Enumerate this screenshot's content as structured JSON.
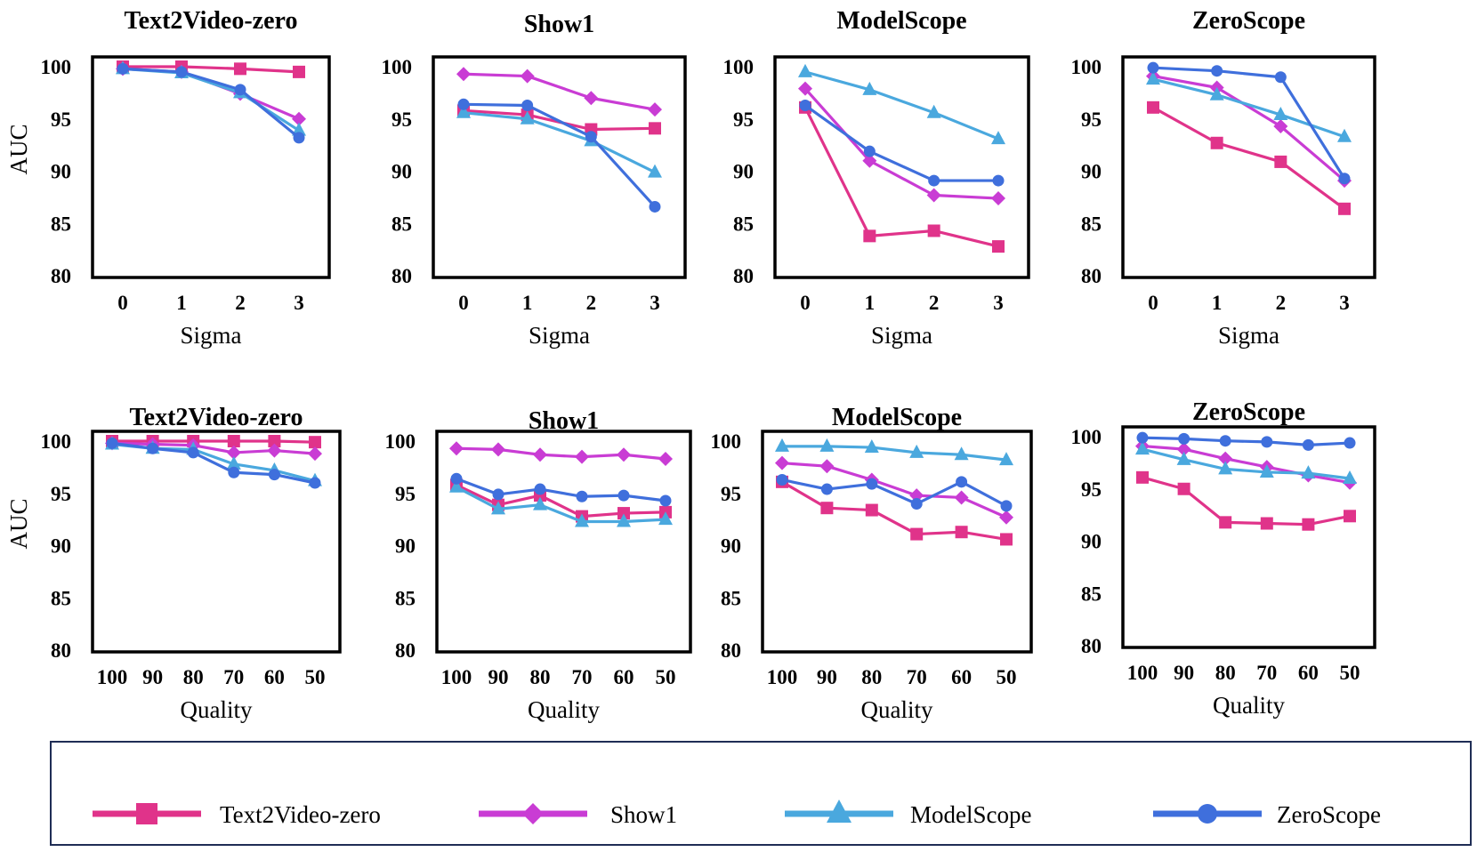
{
  "series_styles": [
    {
      "name": "Text2Video-zero",
      "color": "#e0338a",
      "marker": "square"
    },
    {
      "name": "Show1",
      "color": "#c93cd4",
      "marker": "diamond"
    },
    {
      "name": "ModelScope",
      "color": "#4aa8de",
      "marker": "triangle"
    },
    {
      "name": "ZeroScope",
      "color": "#3f6fdc",
      "marker": "circle"
    }
  ],
  "chart_data": [
    {
      "type": "line",
      "title": "Text2Video-zero",
      "xlabel": "Sigma",
      "ylabel": "AUC",
      "categories": [
        "0",
        "1",
        "2",
        "3"
      ],
      "ylim": [
        80,
        100
      ],
      "yticks": [
        "80",
        "85",
        "90",
        "95",
        "100"
      ],
      "series": [
        {
          "name": "Text2Video-zero",
          "values": [
            100,
            100,
            99.8,
            99.5
          ]
        },
        {
          "name": "Show1",
          "values": [
            99.8,
            99.5,
            97.4,
            95.0
          ]
        },
        {
          "name": "ModelScope",
          "values": [
            99.8,
            99.4,
            97.5,
            93.9
          ]
        },
        {
          "name": "ZeroScope",
          "values": [
            99.8,
            99.5,
            97.8,
            93.2
          ]
        }
      ]
    },
    {
      "type": "line",
      "title": "Show1",
      "xlabel": "Sigma",
      "ylabel": "",
      "categories": [
        "0",
        "1",
        "2",
        "3"
      ],
      "ylim": [
        80,
        100
      ],
      "yticks": [
        "80",
        "85",
        "90",
        "95",
        "100"
      ],
      "series": [
        {
          "name": "Text2Video-zero",
          "values": [
            95.8,
            95.4,
            94.0,
            94.1
          ]
        },
        {
          "name": "Show1",
          "values": [
            99.3,
            99.1,
            97.0,
            95.9
          ]
        },
        {
          "name": "ModelScope",
          "values": [
            95.6,
            95.0,
            92.9,
            89.9
          ]
        },
        {
          "name": "ZeroScope",
          "values": [
            96.4,
            96.3,
            93.3,
            86.6
          ]
        }
      ]
    },
    {
      "type": "line",
      "title": "ModelScope",
      "xlabel": "Sigma",
      "ylabel": "",
      "categories": [
        "0",
        "1",
        "2",
        "3"
      ],
      "ylim": [
        80,
        100
      ],
      "yticks": [
        "80",
        "85",
        "90",
        "95",
        "100"
      ],
      "series": [
        {
          "name": "Text2Video-zero",
          "values": [
            96.1,
            83.8,
            84.3,
            82.8
          ]
        },
        {
          "name": "Show1",
          "values": [
            97.9,
            91.0,
            87.7,
            87.4
          ]
        },
        {
          "name": "ModelScope",
          "values": [
            99.5,
            97.8,
            95.6,
            93.1
          ]
        },
        {
          "name": "ZeroScope",
          "values": [
            96.3,
            91.9,
            89.1,
            89.1
          ]
        }
      ]
    },
    {
      "type": "line",
      "title": "ZeroScope",
      "xlabel": "Sigma",
      "ylabel": "",
      "categories": [
        "0",
        "1",
        "2",
        "3"
      ],
      "ylim": [
        80,
        100
      ],
      "yticks": [
        "80",
        "85",
        "90",
        "95",
        "100"
      ],
      "series": [
        {
          "name": "Text2Video-zero",
          "values": [
            96.1,
            92.7,
            90.9,
            86.4
          ]
        },
        {
          "name": "Show1",
          "values": [
            99.1,
            98.0,
            94.3,
            89.1
          ]
        },
        {
          "name": "ModelScope",
          "values": [
            98.8,
            97.3,
            95.4,
            93.3
          ]
        },
        {
          "name": "ZeroScope",
          "values": [
            99.9,
            99.6,
            99.0,
            89.3
          ]
        }
      ]
    },
    {
      "type": "line",
      "title": "Text2Video-zero",
      "xlabel": "Quality",
      "ylabel": "AUC",
      "categories": [
        "100",
        "90",
        "80",
        "70",
        "60",
        "50"
      ],
      "ylim": [
        80,
        100
      ],
      "yticks": [
        "80",
        "85",
        "90",
        "95",
        "100"
      ],
      "series": [
        {
          "name": "Text2Video-zero",
          "values": [
            100,
            100,
            100,
            100,
            100,
            99.9
          ]
        },
        {
          "name": "Show1",
          "values": [
            99.8,
            99.7,
            99.6,
            98.9,
            99.1,
            98.8
          ]
        },
        {
          "name": "ModelScope",
          "values": [
            99.7,
            99.3,
            99.2,
            97.8,
            97.2,
            96.2
          ]
        },
        {
          "name": "ZeroScope",
          "values": [
            99.8,
            99.3,
            98.9,
            97.0,
            96.8,
            96.0
          ]
        }
      ]
    },
    {
      "type": "line",
      "title": "Show1",
      "xlabel": "Quality",
      "ylabel": "",
      "categories": [
        "100",
        "90",
        "80",
        "70",
        "60",
        "50"
      ],
      "ylim": [
        80,
        100
      ],
      "yticks": [
        "80",
        "85",
        "90",
        "95",
        "100"
      ],
      "series": [
        {
          "name": "Text2Video-zero",
          "values": [
            95.8,
            93.9,
            94.8,
            92.8,
            93.1,
            93.2
          ]
        },
        {
          "name": "Show1",
          "values": [
            99.3,
            99.2,
            98.7,
            98.5,
            98.7,
            98.3
          ]
        },
        {
          "name": "ModelScope",
          "values": [
            95.6,
            93.5,
            93.9,
            92.3,
            92.3,
            92.5
          ]
        },
        {
          "name": "ZeroScope",
          "values": [
            96.4,
            94.9,
            95.4,
            94.7,
            94.8,
            94.3
          ]
        }
      ]
    },
    {
      "type": "line",
      "title": "ModelScope",
      "xlabel": "Quality",
      "ylabel": "",
      "categories": [
        "100",
        "90",
        "80",
        "70",
        "60",
        "50"
      ],
      "ylim": [
        80,
        100
      ],
      "yticks": [
        "80",
        "85",
        "90",
        "95",
        "100"
      ],
      "series": [
        {
          "name": "Text2Video-zero",
          "values": [
            96.1,
            93.6,
            93.4,
            91.1,
            91.3,
            90.6
          ]
        },
        {
          "name": "Show1",
          "values": [
            97.9,
            97.6,
            96.3,
            94.8,
            94.6,
            92.7
          ]
        },
        {
          "name": "ModelScope",
          "values": [
            99.5,
            99.5,
            99.4,
            98.9,
            98.7,
            98.2
          ]
        },
        {
          "name": "ZeroScope",
          "values": [
            96.3,
            95.4,
            95.9,
            94.0,
            96.1,
            93.8
          ]
        }
      ]
    },
    {
      "type": "line",
      "title": "ZeroScope",
      "xlabel": "Quality",
      "ylabel": "",
      "categories": [
        "100",
        "90",
        "80",
        "70",
        "60",
        "50"
      ],
      "ylim": [
        80,
        100
      ],
      "yticks": [
        "80",
        "85",
        "90",
        "95",
        "100"
      ],
      "series": [
        {
          "name": "Text2Video-zero",
          "values": [
            96.1,
            95.0,
            91.8,
            91.7,
            91.6,
            92.4
          ]
        },
        {
          "name": "Show1",
          "values": [
            99.1,
            98.8,
            97.9,
            97.1,
            96.3,
            95.6
          ]
        },
        {
          "name": "ModelScope",
          "values": [
            98.8,
            97.8,
            96.9,
            96.6,
            96.5,
            96.0
          ]
        },
        {
          "name": "ZeroScope",
          "values": [
            99.9,
            99.8,
            99.6,
            99.5,
            99.2,
            99.4
          ]
        }
      ]
    }
  ],
  "legend": {
    "items": [
      {
        "label": "Text2Video-zero"
      },
      {
        "label": "Show1"
      },
      {
        "label": "ModelScope"
      },
      {
        "label": "ZeroScope"
      }
    ]
  }
}
